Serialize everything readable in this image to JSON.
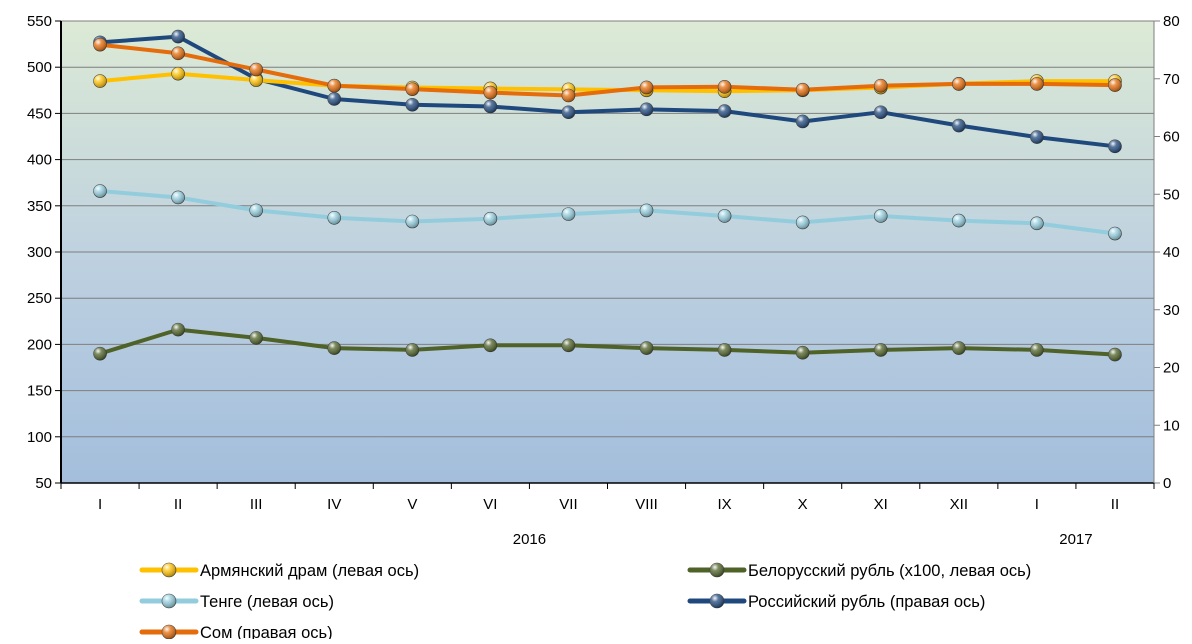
{
  "chart_data": {
    "type": "line",
    "categories": [
      "I",
      "II",
      "III",
      "IV",
      "V",
      "VI",
      "VII",
      "VIII",
      "IX",
      "X",
      "XI",
      "XII",
      "I",
      "II"
    ],
    "year_labels": [
      {
        "label": "2016",
        "category_index": 5.5
      },
      {
        "label": "2017",
        "category_index": 12.5
      }
    ],
    "left_axis": {
      "min": 50,
      "max": 550,
      "ticks": [
        50,
        100,
        150,
        200,
        250,
        300,
        350,
        400,
        450,
        500,
        550
      ]
    },
    "right_axis": {
      "min": 0,
      "max": 80,
      "ticks": [
        0,
        10,
        20,
        30,
        40,
        50,
        60,
        70,
        80
      ]
    },
    "grid": true,
    "legend_position": "bottom",
    "series": [
      {
        "name": "Армянский драм (левая ось)",
        "axis": "left",
        "color": "#FFC000",
        "values": [
          485,
          493,
          486,
          480,
          478,
          477,
          476,
          475,
          474,
          475,
          478,
          482,
          485,
          485
        ]
      },
      {
        "name": "Белорусский рубль (x100, левая ось)",
        "axis": "left",
        "color": "#4F6228",
        "values": [
          190,
          216,
          207,
          196,
          194,
          199,
          199,
          196,
          194,
          191,
          194,
          196,
          194,
          189
        ]
      },
      {
        "name": "Тенге (левая ось)",
        "axis": "left",
        "color": "#93CDDD",
        "values": [
          366,
          359,
          345,
          337,
          333,
          336,
          341,
          345,
          339,
          332,
          339,
          334,
          331,
          320
        ]
      },
      {
        "name": "Российский рубль (правая ось)",
        "axis": "right",
        "color": "#1F497D",
        "values": [
          76.3,
          77.3,
          70.0,
          66.5,
          65.5,
          65.2,
          64.2,
          64.7,
          64.4,
          62.6,
          64.2,
          61.9,
          59.9,
          58.3
        ]
      },
      {
        "name": "Сом (правая ось)",
        "axis": "right",
        "color": "#E46C0A",
        "values": [
          75.9,
          74.4,
          71.6,
          68.8,
          68.2,
          67.6,
          67.1,
          68.5,
          68.6,
          68.1,
          68.8,
          69.1,
          69.1,
          68.9
        ]
      }
    ],
    "draw_order": [
      1,
      2,
      3,
      0,
      4
    ]
  }
}
